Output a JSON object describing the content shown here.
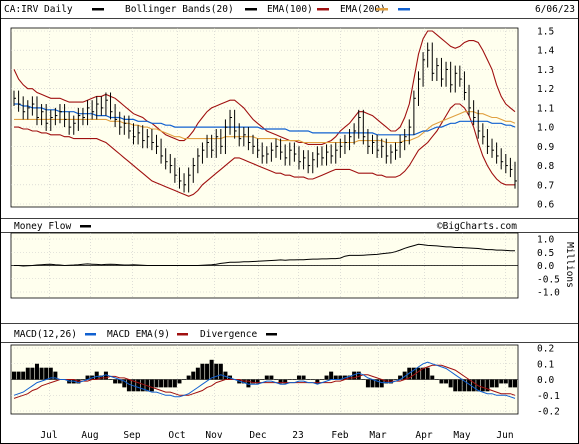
{
  "header": {
    "ticker_label": "CA:IRV Daily",
    "date": "6/06/23",
    "watermark": "©BigCharts.com"
  },
  "legend": {
    "main": [
      {
        "name": "CA:IRV Daily",
        "color": "#000000"
      },
      {
        "name": "Bollinger Bands(20)",
        "color": "#000000"
      },
      {
        "name": "EMA(100)",
        "color": "#a01010"
      },
      {
        "name": "EMA(200)",
        "color": "#e0a040"
      }
    ],
    "extra": {
      "color": "#1060d0"
    },
    "money_flow": {
      "name": "Money Flow",
      "color": "#000000"
    },
    "macd": [
      {
        "name": "MACD(12,26)",
        "color": "#000000"
      },
      {
        "name": "MACD EMA(9)",
        "color": "#1060d0"
      },
      {
        "name": "Divergence",
        "color": "#a01010"
      }
    ]
  },
  "colors": {
    "plot_bg": "#ffffee",
    "grid": "#c8c8c8",
    "price": "#000000",
    "band": "#a01010",
    "ema100": "#e0a040",
    "ema200": "#1060d0",
    "macd_signal": "#1060d0",
    "macd_line": "#a01010"
  },
  "chart_data": [
    {
      "type": "bar",
      "title": "CA:IRV Daily",
      "x_ticks": [
        "Jul",
        "Aug",
        "Sep",
        "Oct",
        "Nov",
        "Dec",
        "23",
        "Feb",
        "Mar",
        "Apr",
        "May",
        "Jun"
      ],
      "y_ticks": [
        "1.5",
        "1.4",
        "1.3",
        "1.2",
        "1.1",
        "1.0",
        "0.9",
        "0.8",
        "0.7",
        "0.6"
      ],
      "ylim": [
        0.6,
        1.5
      ],
      "close": [
        1.15,
        1.12,
        1.08,
        1.1,
        1.12,
        1.05,
        1.08,
        1.02,
        1.05,
        1.06,
        1.08,
        1.04,
        1.0,
        1.02,
        1.06,
        1.05,
        1.1,
        1.08,
        1.12,
        1.1,
        1.14,
        1.08,
        1.04,
        1.0,
        1.02,
        0.98,
        0.95,
        0.97,
        0.93,
        0.95,
        0.92,
        0.9,
        0.85,
        0.82,
        0.8,
        0.75,
        0.72,
        0.7,
        0.75,
        0.8,
        0.85,
        0.88,
        0.92,
        0.88,
        0.95,
        0.9,
        1.0,
        1.05,
        0.98,
        0.94,
        0.96,
        0.92,
        0.9,
        0.88,
        0.85,
        0.86,
        0.88,
        0.9,
        0.87,
        0.84,
        0.88,
        0.86,
        0.82,
        0.84,
        0.8,
        0.83,
        0.86,
        0.84,
        0.87,
        0.85,
        0.88,
        0.9,
        0.92,
        0.95,
        0.98,
        1.05,
        0.95,
        0.9,
        0.92,
        0.88,
        0.9,
        0.85,
        0.87,
        0.88,
        0.92,
        0.95,
        1.0,
        1.15,
        1.25,
        1.35,
        1.4,
        1.28,
        1.32,
        1.25,
        1.3,
        1.22,
        1.28,
        1.25,
        1.18,
        1.1,
        1.05,
        0.98,
        0.95,
        0.9,
        0.88,
        0.85,
        0.82,
        0.8,
        0.78,
        0.72
      ],
      "bands": {
        "upper": [
          1.3,
          1.25,
          1.22,
          1.2,
          1.2,
          1.18,
          1.17,
          1.16,
          1.15,
          1.15,
          1.15,
          1.14,
          1.13,
          1.13,
          1.13,
          1.13,
          1.14,
          1.15,
          1.16,
          1.16,
          1.17,
          1.16,
          1.15,
          1.13,
          1.11,
          1.09,
          1.07,
          1.06,
          1.05,
          1.03,
          1.02,
          1.0,
          0.98,
          0.96,
          0.95,
          0.94,
          0.93,
          0.93,
          0.95,
          0.98,
          1.02,
          1.05,
          1.08,
          1.1,
          1.11,
          1.12,
          1.13,
          1.14,
          1.14,
          1.12,
          1.1,
          1.07,
          1.04,
          1.02,
          1.0,
          0.98,
          0.97,
          0.96,
          0.95,
          0.94,
          0.93,
          0.93,
          0.92,
          0.92,
          0.91,
          0.91,
          0.91,
          0.91,
          0.92,
          0.93,
          0.95,
          0.98,
          1.0,
          1.02,
          1.05,
          1.08,
          1.08,
          1.07,
          1.06,
          1.04,
          1.02,
          1.0,
          0.98,
          0.98,
          1.0,
          1.05,
          1.12,
          1.25,
          1.38,
          1.46,
          1.5,
          1.5,
          1.48,
          1.46,
          1.44,
          1.42,
          1.41,
          1.42,
          1.44,
          1.45,
          1.45,
          1.44,
          1.4,
          1.35,
          1.3,
          1.22,
          1.16,
          1.12,
          1.1,
          1.08
        ],
        "lower": [
          1.0,
          1.0,
          0.99,
          0.99,
          0.98,
          0.98,
          0.97,
          0.97,
          0.96,
          0.96,
          0.96,
          0.95,
          0.95,
          0.94,
          0.94,
          0.94,
          0.94,
          0.94,
          0.94,
          0.93,
          0.92,
          0.9,
          0.88,
          0.86,
          0.84,
          0.82,
          0.8,
          0.78,
          0.76,
          0.74,
          0.72,
          0.71,
          0.7,
          0.69,
          0.68,
          0.67,
          0.66,
          0.65,
          0.64,
          0.65,
          0.67,
          0.7,
          0.72,
          0.74,
          0.76,
          0.78,
          0.8,
          0.82,
          0.84,
          0.84,
          0.83,
          0.82,
          0.81,
          0.8,
          0.79,
          0.78,
          0.77,
          0.76,
          0.76,
          0.75,
          0.75,
          0.74,
          0.74,
          0.74,
          0.73,
          0.73,
          0.74,
          0.75,
          0.76,
          0.77,
          0.78,
          0.78,
          0.78,
          0.78,
          0.77,
          0.76,
          0.76,
          0.76,
          0.76,
          0.75,
          0.75,
          0.74,
          0.74,
          0.74,
          0.75,
          0.77,
          0.8,
          0.84,
          0.88,
          0.9,
          0.92,
          0.95,
          0.98,
          1.02,
          1.06,
          1.1,
          1.12,
          1.12,
          1.1,
          1.06,
          1.0,
          0.92,
          0.85,
          0.8,
          0.76,
          0.73,
          0.71,
          0.7,
          0.7,
          0.7
        ]
      },
      "ema100": [
        1.04,
        1.04,
        1.04,
        1.04,
        1.04,
        1.04,
        1.04,
        1.04,
        1.04,
        1.04,
        1.04,
        1.04,
        1.04,
        1.04,
        1.04,
        1.04,
        1.04,
        1.04,
        1.04,
        1.04,
        1.04,
        1.03,
        1.03,
        1.03,
        1.02,
        1.02,
        1.01,
        1.01,
        1.0,
        1.0,
        0.99,
        0.99,
        0.98,
        0.97,
        0.96,
        0.95,
        0.95,
        0.94,
        0.94,
        0.94,
        0.94,
        0.94,
        0.94,
        0.94,
        0.94,
        0.94,
        0.95,
        0.95,
        0.95,
        0.95,
        0.95,
        0.95,
        0.95,
        0.94,
        0.94,
        0.94,
        0.94,
        0.94,
        0.93,
        0.93,
        0.93,
        0.93,
        0.93,
        0.92,
        0.92,
        0.92,
        0.92,
        0.92,
        0.92,
        0.92,
        0.92,
        0.92,
        0.92,
        0.92,
        0.92,
        0.93,
        0.93,
        0.93,
        0.93,
        0.93,
        0.93,
        0.92,
        0.92,
        0.92,
        0.92,
        0.93,
        0.93,
        0.94,
        0.95,
        0.97,
        0.99,
        1.01,
        1.02,
        1.03,
        1.04,
        1.05,
        1.06,
        1.07,
        1.08,
        1.08,
        1.08,
        1.07,
        1.07,
        1.06,
        1.05,
        1.05,
        1.04,
        1.03,
        1.03,
        1.02
      ],
      "ema200": [
        1.12,
        1.12,
        1.11,
        1.11,
        1.1,
        1.1,
        1.1,
        1.09,
        1.09,
        1.09,
        1.08,
        1.08,
        1.08,
        1.08,
        1.07,
        1.07,
        1.07,
        1.07,
        1.06,
        1.06,
        1.06,
        1.05,
        1.05,
        1.05,
        1.04,
        1.04,
        1.04,
        1.03,
        1.03,
        1.03,
        1.02,
        1.02,
        1.02,
        1.01,
        1.01,
        1.0,
        1.0,
        1.0,
        1.0,
        1.0,
        1.0,
        1.0,
        1.0,
        1.0,
        1.0,
        1.0,
        1.0,
        1.0,
        1.0,
        1.0,
        1.0,
        1.0,
        1.0,
        1.0,
        0.99,
        0.99,
        0.99,
        0.99,
        0.99,
        0.99,
        0.98,
        0.98,
        0.98,
        0.98,
        0.98,
        0.97,
        0.97,
        0.97,
        0.97,
        0.97,
        0.97,
        0.97,
        0.97,
        0.97,
        0.97,
        0.97,
        0.97,
        0.97,
        0.97,
        0.96,
        0.96,
        0.96,
        0.96,
        0.96,
        0.96,
        0.96,
        0.96,
        0.96,
        0.97,
        0.98,
        0.98,
        0.99,
        1.0,
        1.0,
        1.01,
        1.02,
        1.02,
        1.03,
        1.03,
        1.03,
        1.03,
        1.03,
        1.03,
        1.03,
        1.02,
        1.02,
        1.02,
        1.01,
        1.01,
        1.0
      ]
    },
    {
      "type": "line",
      "title": "Money Flow",
      "y_ticks": [
        "1.0",
        "0.5",
        "0.0",
        "-0.5",
        "-1.0"
      ],
      "ylabel": "Millions",
      "ylim": [
        -1.0,
        1.0
      ],
      "values": [
        0.0,
        0.0,
        -0.02,
        -0.01,
        0.0,
        0.02,
        0.03,
        0.04,
        0.05,
        0.03,
        0.02,
        0.0,
        0.01,
        0.02,
        0.03,
        0.05,
        0.06,
        0.05,
        0.04,
        0.03,
        0.04,
        0.05,
        0.04,
        0.03,
        0.02,
        0.02,
        0.03,
        0.02,
        0.01,
        0.0,
        0.0,
        0.0,
        0.0,
        0.0,
        0.0,
        0.0,
        0.0,
        0.0,
        0.0,
        0.0,
        0.0,
        0.01,
        0.02,
        0.03,
        0.05,
        0.08,
        0.1,
        0.12,
        0.12,
        0.13,
        0.14,
        0.14,
        0.15,
        0.16,
        0.17,
        0.18,
        0.19,
        0.2,
        0.21,
        0.2,
        0.21,
        0.21,
        0.22,
        0.22,
        0.23,
        0.24,
        0.24,
        0.25,
        0.25,
        0.26,
        0.26,
        0.28,
        0.35,
        0.38,
        0.38,
        0.38,
        0.39,
        0.4,
        0.41,
        0.42,
        0.44,
        0.46,
        0.48,
        0.52,
        0.58,
        0.65,
        0.7,
        0.75,
        0.8,
        0.78,
        0.76,
        0.75,
        0.74,
        0.72,
        0.7,
        0.7,
        0.68,
        0.68,
        0.67,
        0.66,
        0.65,
        0.64,
        0.62,
        0.6,
        0.6,
        0.58,
        0.58,
        0.57,
        0.56,
        0.56
      ]
    },
    {
      "type": "line",
      "title": "MACD(12,26)",
      "y_ticks": [
        "0.2",
        "0.1",
        "0.0",
        "-0.1",
        "-0.2"
      ],
      "ylim": [
        -0.2,
        0.2
      ],
      "macd": [
        -0.1,
        -0.09,
        -0.08,
        -0.06,
        -0.04,
        -0.02,
        -0.01,
        0.0,
        0.01,
        0.01,
        0.0,
        0.0,
        -0.01,
        -0.01,
        -0.02,
        -0.01,
        0.0,
        0.01,
        0.02,
        0.02,
        0.03,
        0.02,
        0.01,
        0.0,
        -0.01,
        -0.03,
        -0.04,
        -0.05,
        -0.06,
        -0.07,
        -0.08,
        -0.08,
        -0.09,
        -0.1,
        -0.1,
        -0.11,
        -0.11,
        -0.1,
        -0.09,
        -0.07,
        -0.05,
        -0.03,
        -0.01,
        0.01,
        0.02,
        0.03,
        0.02,
        0.01,
        0.0,
        -0.01,
        -0.02,
        -0.03,
        -0.03,
        -0.03,
        -0.02,
        -0.01,
        -0.01,
        -0.02,
        -0.03,
        -0.03,
        -0.02,
        -0.02,
        -0.01,
        -0.01,
        -0.02,
        -0.02,
        -0.03,
        -0.02,
        -0.01,
        0.0,
        0.0,
        0.0,
        0.01,
        0.02,
        0.03,
        0.04,
        0.03,
        0.01,
        0.0,
        -0.01,
        -0.02,
        -0.02,
        -0.02,
        -0.01,
        0.0,
        0.02,
        0.04,
        0.06,
        0.08,
        0.1,
        0.11,
        0.1,
        0.09,
        0.08,
        0.07,
        0.05,
        0.03,
        0.01,
        -0.01,
        -0.03,
        -0.05,
        -0.07,
        -0.08,
        -0.09,
        -0.09,
        -0.1,
        -0.1,
        -0.1,
        -0.11,
        -0.12
      ],
      "signal": [
        -0.12,
        -0.11,
        -0.1,
        -0.09,
        -0.07,
        -0.06,
        -0.04,
        -0.03,
        -0.02,
        -0.01,
        0.0,
        0.0,
        0.0,
        0.0,
        -0.01,
        -0.01,
        -0.01,
        0.0,
        0.0,
        0.01,
        0.01,
        0.02,
        0.02,
        0.01,
        0.01,
        0.0,
        -0.01,
        -0.02,
        -0.03,
        -0.04,
        -0.05,
        -0.06,
        -0.07,
        -0.08,
        -0.08,
        -0.09,
        -0.1,
        -0.1,
        -0.1,
        -0.09,
        -0.08,
        -0.07,
        -0.05,
        -0.04,
        -0.02,
        -0.01,
        0.0,
        0.0,
        0.0,
        0.0,
        -0.01,
        -0.01,
        -0.02,
        -0.02,
        -0.02,
        -0.02,
        -0.02,
        -0.02,
        -0.02,
        -0.02,
        -0.02,
        -0.02,
        -0.02,
        -0.02,
        -0.02,
        -0.02,
        -0.02,
        -0.02,
        -0.02,
        -0.02,
        -0.01,
        -0.01,
        0.0,
        0.01,
        0.01,
        0.02,
        0.03,
        0.03,
        0.02,
        0.01,
        0.0,
        -0.01,
        -0.01,
        -0.01,
        -0.01,
        0.0,
        0.01,
        0.03,
        0.05,
        0.07,
        0.08,
        0.09,
        0.09,
        0.09,
        0.08,
        0.07,
        0.06,
        0.04,
        0.02,
        0.0,
        -0.02,
        -0.04,
        -0.05,
        -0.06,
        -0.07,
        -0.08,
        -0.09,
        -0.09,
        -0.09,
        -0.1
      ]
    }
  ]
}
